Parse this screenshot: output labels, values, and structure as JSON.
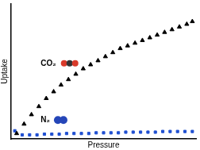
{
  "chart_data": {
    "type": "scatter",
    "x_label": "Pressure",
    "y_label": "Uptake",
    "xlim": [
      0,
      10
    ],
    "ylim": [
      0,
      10
    ],
    "tick_labels": false,
    "grid": false,
    "annotations": [
      "CO₂",
      "N₂"
    ],
    "series": [
      {
        "name": "CO₂",
        "color": "#000000",
        "marker": "triangle",
        "x": [
          0.3,
          0.7,
          1.1,
          1.5,
          1.9,
          2.3,
          2.7,
          3.1,
          3.5,
          3.9,
          4.3,
          4.7,
          5.1,
          5.5,
          5.9,
          6.3,
          6.7,
          7.1,
          7.5,
          7.9,
          8.3,
          8.7,
          9.1,
          9.5,
          9.8
        ],
        "values": [
          0.4,
          1.1,
          1.8,
          2.4,
          3.0,
          3.5,
          4.0,
          4.4,
          4.8,
          5.2,
          5.5,
          5.8,
          6.1,
          6.4,
          6.7,
          6.9,
          7.1,
          7.3,
          7.5,
          7.7,
          7.9,
          8.1,
          8.3,
          8.5,
          8.7
        ]
      },
      {
        "name": "N₂",
        "color": "#1f4fd1",
        "marker": "square",
        "x": [
          0.2,
          0.6,
          1.0,
          1.4,
          1.8,
          2.2,
          2.6,
          3.0,
          3.4,
          3.8,
          4.2,
          4.6,
          5.0,
          5.4,
          5.8,
          6.2,
          6.6,
          7.0,
          7.4,
          7.8,
          8.2,
          8.6,
          9.0,
          9.4,
          9.8
        ],
        "values": [
          0.6,
          0.3,
          0.3,
          0.3,
          0.35,
          0.35,
          0.35,
          0.4,
          0.4,
          0.4,
          0.4,
          0.45,
          0.45,
          0.45,
          0.45,
          0.5,
          0.5,
          0.5,
          0.5,
          0.5,
          0.55,
          0.55,
          0.55,
          0.55,
          0.55
        ]
      }
    ]
  }
}
